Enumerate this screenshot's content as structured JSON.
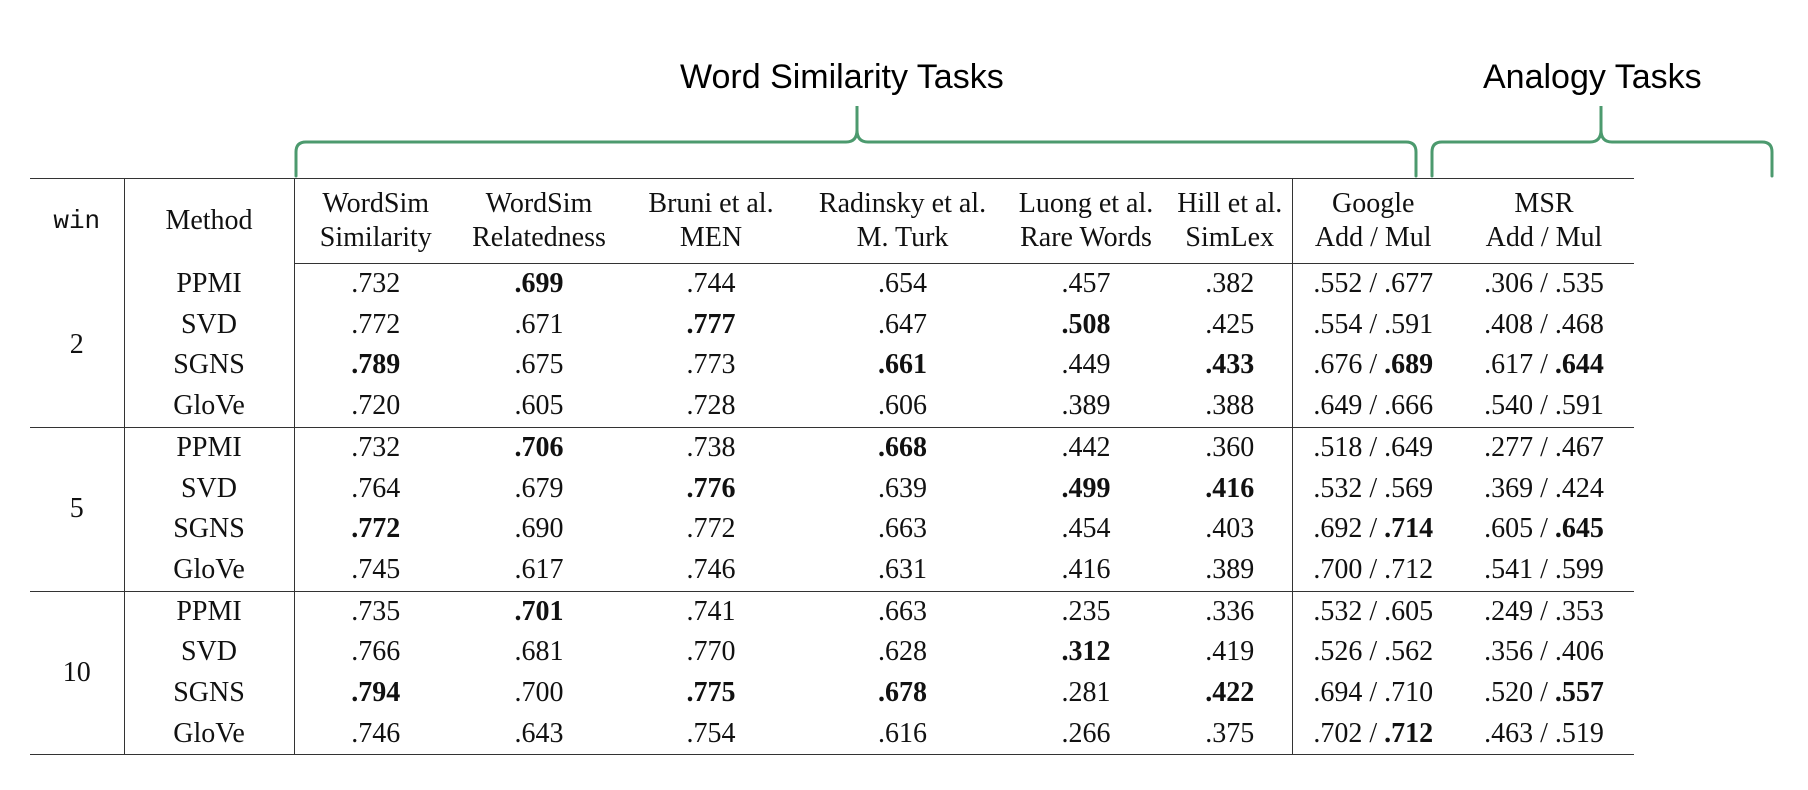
{
  "group_headers": {
    "word_similarity": "Word Similarity Tasks",
    "analogy": "Analogy Tasks"
  },
  "accent_color": "#4c9a6e",
  "columns": {
    "win": "win",
    "method": "Method",
    "ws_sim": [
      "WordSim",
      "Similarity"
    ],
    "ws_rel": [
      "WordSim",
      "Relatedness"
    ],
    "men": [
      "Bruni et al.",
      "MEN"
    ],
    "mturk": [
      "Radinsky et al.",
      "M. Turk"
    ],
    "rw": [
      "Luong et al.",
      "Rare Words"
    ],
    "simlex": [
      "Hill et al.",
      "SimLex"
    ],
    "google": [
      "Google",
      "Add / Mul"
    ],
    "msr": [
      "MSR",
      "Add / Mul"
    ]
  },
  "groups": [
    {
      "win": "2",
      "rows": [
        {
          "method": "PPMI",
          "cells": [
            ".732",
            ".699",
            ".744",
            ".654",
            ".457",
            ".382"
          ],
          "bold": [
            false,
            true,
            false,
            false,
            false,
            false
          ],
          "google": [
            ".552",
            ".677"
          ],
          "google_bold": [
            false,
            false
          ],
          "msr": [
            ".306",
            ".535"
          ],
          "msr_bold": [
            false,
            false
          ]
        },
        {
          "method": "SVD",
          "cells": [
            ".772",
            ".671",
            ".777",
            ".647",
            ".508",
            ".425"
          ],
          "bold": [
            false,
            false,
            true,
            false,
            true,
            false
          ],
          "google": [
            ".554",
            ".591"
          ],
          "google_bold": [
            false,
            false
          ],
          "msr": [
            ".408",
            ".468"
          ],
          "msr_bold": [
            false,
            false
          ]
        },
        {
          "method": "SGNS",
          "cells": [
            ".789",
            ".675",
            ".773",
            ".661",
            ".449",
            ".433"
          ],
          "bold": [
            true,
            false,
            false,
            true,
            false,
            true
          ],
          "google": [
            ".676",
            ".689"
          ],
          "google_bold": [
            false,
            true
          ],
          "msr": [
            ".617",
            ".644"
          ],
          "msr_bold": [
            false,
            true
          ]
        },
        {
          "method": "GloVe",
          "cells": [
            ".720",
            ".605",
            ".728",
            ".606",
            ".389",
            ".388"
          ],
          "bold": [
            false,
            false,
            false,
            false,
            false,
            false
          ],
          "google": [
            ".649",
            ".666"
          ],
          "google_bold": [
            false,
            false
          ],
          "msr": [
            ".540",
            ".591"
          ],
          "msr_bold": [
            false,
            false
          ]
        }
      ]
    },
    {
      "win": "5",
      "rows": [
        {
          "method": "PPMI",
          "cells": [
            ".732",
            ".706",
            ".738",
            ".668",
            ".442",
            ".360"
          ],
          "bold": [
            false,
            true,
            false,
            true,
            false,
            false
          ],
          "google": [
            ".518",
            ".649"
          ],
          "google_bold": [
            false,
            false
          ],
          "msr": [
            ".277",
            ".467"
          ],
          "msr_bold": [
            false,
            false
          ]
        },
        {
          "method": "SVD",
          "cells": [
            ".764",
            ".679",
            ".776",
            ".639",
            ".499",
            ".416"
          ],
          "bold": [
            false,
            false,
            true,
            false,
            true,
            true
          ],
          "google": [
            ".532",
            ".569"
          ],
          "google_bold": [
            false,
            false
          ],
          "msr": [
            ".369",
            ".424"
          ],
          "msr_bold": [
            false,
            false
          ]
        },
        {
          "method": "SGNS",
          "cells": [
            ".772",
            ".690",
            ".772",
            ".663",
            ".454",
            ".403"
          ],
          "bold": [
            true,
            false,
            false,
            false,
            false,
            false
          ],
          "google": [
            ".692",
            ".714"
          ],
          "google_bold": [
            false,
            true
          ],
          "msr": [
            ".605",
            ".645"
          ],
          "msr_bold": [
            false,
            true
          ]
        },
        {
          "method": "GloVe",
          "cells": [
            ".745",
            ".617",
            ".746",
            ".631",
            ".416",
            ".389"
          ],
          "bold": [
            false,
            false,
            false,
            false,
            false,
            false
          ],
          "google": [
            ".700",
            ".712"
          ],
          "google_bold": [
            false,
            false
          ],
          "msr": [
            ".541",
            ".599"
          ],
          "msr_bold": [
            false,
            false
          ]
        }
      ]
    },
    {
      "win": "10",
      "rows": [
        {
          "method": "PPMI",
          "cells": [
            ".735",
            ".701",
            ".741",
            ".663",
            ".235",
            ".336"
          ],
          "bold": [
            false,
            true,
            false,
            false,
            false,
            false
          ],
          "google": [
            ".532",
            ".605"
          ],
          "google_bold": [
            false,
            false
          ],
          "msr": [
            ".249",
            ".353"
          ],
          "msr_bold": [
            false,
            false
          ]
        },
        {
          "method": "SVD",
          "cells": [
            ".766",
            ".681",
            ".770",
            ".628",
            ".312",
            ".419"
          ],
          "bold": [
            false,
            false,
            false,
            false,
            true,
            false
          ],
          "google": [
            ".526",
            ".562"
          ],
          "google_bold": [
            false,
            false
          ],
          "msr": [
            ".356",
            ".406"
          ],
          "msr_bold": [
            false,
            false
          ]
        },
        {
          "method": "SGNS",
          "cells": [
            ".794",
            ".700",
            ".775",
            ".678",
            ".281",
            ".422"
          ],
          "bold": [
            true,
            false,
            true,
            true,
            false,
            true
          ],
          "google": [
            ".694",
            ".710"
          ],
          "google_bold": [
            false,
            false
          ],
          "msr": [
            ".520",
            ".557"
          ],
          "msr_bold": [
            false,
            true
          ]
        },
        {
          "method": "GloVe",
          "cells": [
            ".746",
            ".643",
            ".754",
            ".616",
            ".266",
            ".375"
          ],
          "bold": [
            false,
            false,
            false,
            false,
            false,
            false
          ],
          "google": [
            ".702",
            ".712"
          ],
          "google_bold": [
            false,
            true
          ],
          "msr": [
            ".463",
            ".519"
          ],
          "msr_bold": [
            false,
            false
          ]
        }
      ]
    }
  ]
}
